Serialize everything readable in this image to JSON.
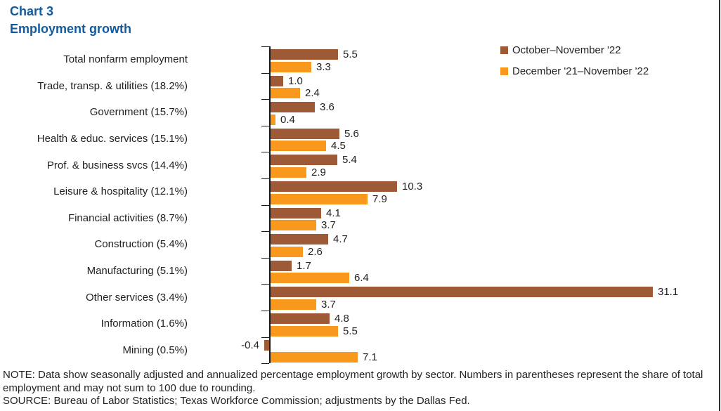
{
  "title": {
    "chart_number": "Chart 3",
    "chart_title": "Employment growth"
  },
  "colors": {
    "series1": "#9E5A36",
    "series2": "#F8981D",
    "title_blue": "#125A9E",
    "text": "#231F20",
    "axis": "#1a1a1a"
  },
  "legend": {
    "items": [
      {
        "label": "October–November '22",
        "color_key": "series1"
      },
      {
        "label": "December '21–November '22",
        "color_key": "series2"
      }
    ]
  },
  "chart_data": {
    "type": "bar",
    "orientation": "horizontal",
    "title": "Employment growth",
    "xlabel": "",
    "ylabel": "",
    "xlim": [
      -0.6,
      33
    ],
    "grid": false,
    "legend_position": "top-right",
    "value_labels_shown": true,
    "categories": [
      "Total nonfarm employment",
      "Trade, transp. & utilities (18.2%)",
      "Government (15.7%)",
      "Health & educ. services (15.1%)",
      "Prof. & business svcs (14.4%)",
      "Leisure & hospitality (12.1%)",
      "Financial activities (8.7%)",
      "Construction (5.4%)",
      "Manufacturing (5.1%)",
      "Other services (3.4%)",
      "Information (1.6%)",
      "Mining (0.5%)"
    ],
    "series": [
      {
        "name": "October–November '22",
        "values": [
          5.5,
          1.0,
          3.6,
          5.6,
          5.4,
          10.3,
          4.1,
          4.7,
          1.7,
          31.1,
          4.8,
          -0.4
        ]
      },
      {
        "name": "December '21–November '22",
        "values": [
          3.3,
          2.4,
          0.4,
          4.5,
          2.9,
          7.9,
          3.7,
          2.6,
          6.4,
          3.7,
          5.5,
          7.1
        ]
      }
    ]
  },
  "notes": {
    "note": "NOTE: Data show seasonally adjusted and annualized percentage employment growth by sector. Numbers in parentheses represent the share of total employment and may not sum to 100 due to rounding.",
    "source": "SOURCE: Bureau of Labor Statistics; Texas Workforce Commission; adjustments by the Dallas Fed."
  }
}
